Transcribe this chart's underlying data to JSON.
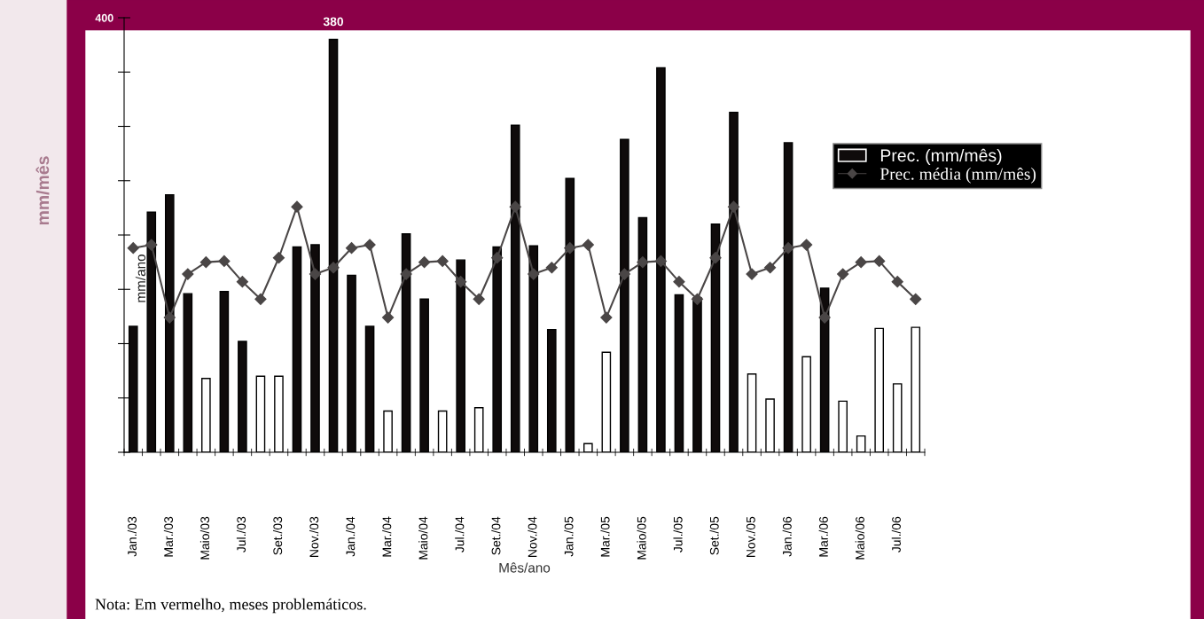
{
  "chart_data": {
    "type": "bar",
    "xlabel": "Mês/ano",
    "ylabel": "mm/ano",
    "annotations": [
      "Nota: Em vermelho, meses problemáticos.",
      "mm/mês"
    ],
    "categories": [
      "Jan./03",
      null,
      "Mar./03",
      null,
      "Maio/03",
      null,
      "Jul./03",
      null,
      "Set./03",
      null,
      "Nov./03",
      null,
      "Jan./04",
      null,
      "Mar./04",
      null,
      "Maio/04",
      null,
      "Jul./04",
      null,
      "Set./04",
      null,
      "Nov./04",
      null,
      "Jan./05",
      null,
      "Mar./05",
      null,
      "Maio/05",
      null,
      "Jul./05",
      null,
      "Set./05",
      null,
      "Nov./05",
      null,
      "Jan./06",
      null,
      "Mar./06",
      null,
      "Maio/06",
      null,
      "Jul./06",
      null
    ],
    "series": [
      {
        "name": "Prec. (mm/mês)",
        "color": "#0f0b0b",
        "colors": [
          "#0f0b0b",
          "#0f0b0b",
          "#0f0b0b",
          "#0f0b0b",
          "#ffffff",
          "#0f0b0b",
          "#0f0b0b",
          "#ffffff",
          "#ffffff",
          "#0f0b0b",
          "#0f0b0b",
          "#0f0b0b",
          "#0f0b0b",
          "#0f0b0b",
          "#ffffff",
          "#0f0b0b",
          "#0f0b0b",
          "#ffffff",
          "#0f0b0b",
          "#ffffff",
          "#0f0b0b",
          "#0f0b0b",
          "#0f0b0b",
          "#0f0b0b",
          "#0f0b0b",
          "#ffffff",
          "#ffffff",
          "#0f0b0b",
          "#0f0b0b",
          "#0f0b0b",
          "#0f0b0b",
          "#0f0b0b",
          "#0f0b0b",
          "#0f0b0b",
          "#ffffff",
          "#ffffff",
          "#0f0b0b",
          "#ffffff",
          "#0f0b0b",
          "#ffffff",
          "#ffffff",
          "#ffffff",
          "#ffffff",
          "#ffffff"
        ],
        "values": [
          116,
          221,
          237,
          146,
          68,
          148,
          102,
          70,
          70,
          189,
          191,
          380,
          163,
          116,
          38,
          201,
          141,
          38,
          177,
          41,
          189,
          301,
          190,
          113,
          252,
          8,
          92,
          288,
          216,
          354,
          145,
          142,
          210,
          313,
          72,
          49,
          285,
          88,
          151,
          47,
          15,
          114,
          63,
          115
        ],
        "value_labels": [
          null,
          null,
          null,
          null,
          null,
          null,
          null,
          null,
          null,
          null,
          null,
          "380",
          null,
          null,
          null,
          null,
          null,
          null,
          null,
          null,
          null,
          null,
          null,
          null,
          null,
          null,
          null,
          null,
          null,
          null,
          null,
          null,
          null,
          null,
          null,
          null,
          null,
          null,
          null,
          null,
          null,
          null,
          null,
          null
        ]
      },
      {
        "name": "Prec. média (mm/mês)",
        "type": "line",
        "color": "#4a4646",
        "marker": "diamond",
        "line_style": "solid",
        "values": [
          188,
          191,
          124,
          164,
          175,
          176,
          157,
          141,
          179,
          226,
          164,
          170,
          188,
          191,
          124,
          164,
          175,
          176,
          157,
          141,
          179,
          226,
          164,
          170,
          188,
          191,
          124,
          164,
          175,
          176,
          157,
          141,
          179,
          226,
          164,
          170,
          188,
          191,
          124,
          164,
          175,
          176,
          157,
          141
        ]
      }
    ],
    "ylim": [
      0,
      400
    ],
    "yticks": [
      {
        "value": 0,
        "label": null
      },
      {
        "value": 50,
        "label": null
      },
      {
        "value": 100,
        "label": null
      },
      {
        "value": 150,
        "label": null
      },
      {
        "value": 200,
        "label": null
      },
      {
        "value": 250,
        "label": null
      },
      {
        "value": 300,
        "label": null
      },
      {
        "value": 350,
        "label": null
      },
      400
    ],
    "grid": false,
    "legend": "right"
  }
}
